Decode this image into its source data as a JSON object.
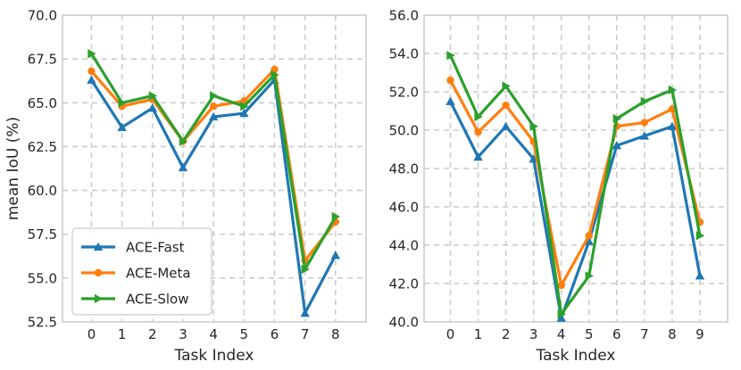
{
  "chart_data": [
    {
      "type": "line",
      "ylabel": "mean IoU (%)",
      "xlabel": "Task Index",
      "x": [
        0,
        1,
        2,
        3,
        4,
        5,
        6,
        7,
        8
      ],
      "xlim": [
        -0.95,
        9
      ],
      "ylim": [
        52.5,
        70.0
      ],
      "yticks": [
        "52.5",
        "55.0",
        "57.5",
        "60.0",
        "62.5",
        "65.0",
        "67.5",
        "70.0"
      ],
      "xticks": [
        "0",
        "1",
        "2",
        "3",
        "4",
        "5",
        "6",
        "7",
        "8"
      ],
      "grid": true,
      "legend_position": "lower-left",
      "series": [
        {
          "name": "ACE-Fast",
          "values": [
            66.3,
            63.6,
            64.7,
            61.3,
            64.2,
            64.4,
            66.3,
            53.0,
            56.3
          ],
          "color": "#1f77b4",
          "marker": "triangle-up"
        },
        {
          "name": "ACE-Meta",
          "values": [
            66.8,
            64.8,
            65.2,
            62.8,
            64.8,
            65.1,
            66.9,
            56.0,
            58.2
          ],
          "color": "#ff7f0e",
          "marker": "circle"
        },
        {
          "name": "ACE-Slow",
          "values": [
            67.8,
            65.0,
            65.4,
            62.8,
            65.4,
            64.8,
            66.6,
            55.5,
            58.5
          ],
          "color": "#2ca02c",
          "marker": "triangle-right"
        }
      ]
    },
    {
      "type": "line",
      "xlabel": "Task Index",
      "x": [
        0,
        1,
        2,
        3,
        4,
        5,
        6,
        7,
        8,
        9
      ],
      "xlim": [
        -0.95,
        10
      ],
      "ylim": [
        40.0,
        56.0
      ],
      "yticks": [
        "40.0",
        "42.0",
        "44.0",
        "46.0",
        "48.0",
        "50.0",
        "52.0",
        "54.0",
        "56.0"
      ],
      "xticks": [
        "0",
        "1",
        "2",
        "3",
        "4",
        "5",
        "6",
        "7",
        "8",
        "9"
      ],
      "grid": true,
      "series": [
        {
          "name": "ACE-Fast",
          "values": [
            51.5,
            48.6,
            50.2,
            48.5,
            40.2,
            44.2,
            49.2,
            49.7,
            50.2,
            42.4
          ],
          "color": "#1f77b4",
          "marker": "triangle-up"
        },
        {
          "name": "ACE-Meta",
          "values": [
            52.6,
            49.9,
            51.3,
            49.4,
            41.9,
            44.5,
            50.2,
            50.4,
            51.1,
            45.2
          ],
          "color": "#ff7f0e",
          "marker": "circle"
        },
        {
          "name": "ACE-Slow",
          "values": [
            53.9,
            50.7,
            52.3,
            50.2,
            40.4,
            42.4,
            50.6,
            51.5,
            52.1,
            44.5
          ],
          "color": "#2ca02c",
          "marker": "triangle-right"
        }
      ]
    }
  ]
}
